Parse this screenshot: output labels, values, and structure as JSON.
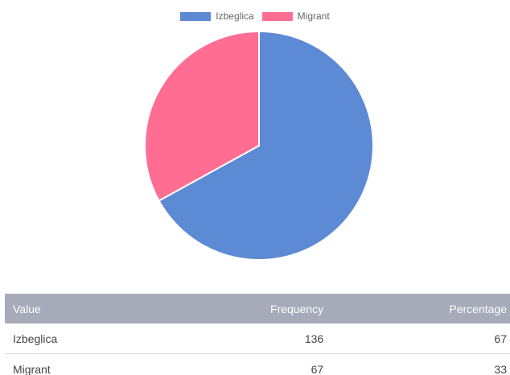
{
  "chart_data": {
    "type": "pie",
    "categories": [
      "Izbeglica",
      "Migrant"
    ],
    "values": [
      136,
      67
    ],
    "colors": [
      "#5d8ad4",
      "#ff6e92"
    ],
    "legend_position": "top"
  },
  "table": {
    "headers": [
      "Value",
      "Frequency",
      "Percentage"
    ],
    "rows": [
      {
        "value": "Izbeglica",
        "frequency": "136",
        "percentage": "67"
      },
      {
        "value": "Migrant",
        "frequency": "67",
        "percentage": "33"
      }
    ],
    "header_color": "#a6aab9"
  }
}
